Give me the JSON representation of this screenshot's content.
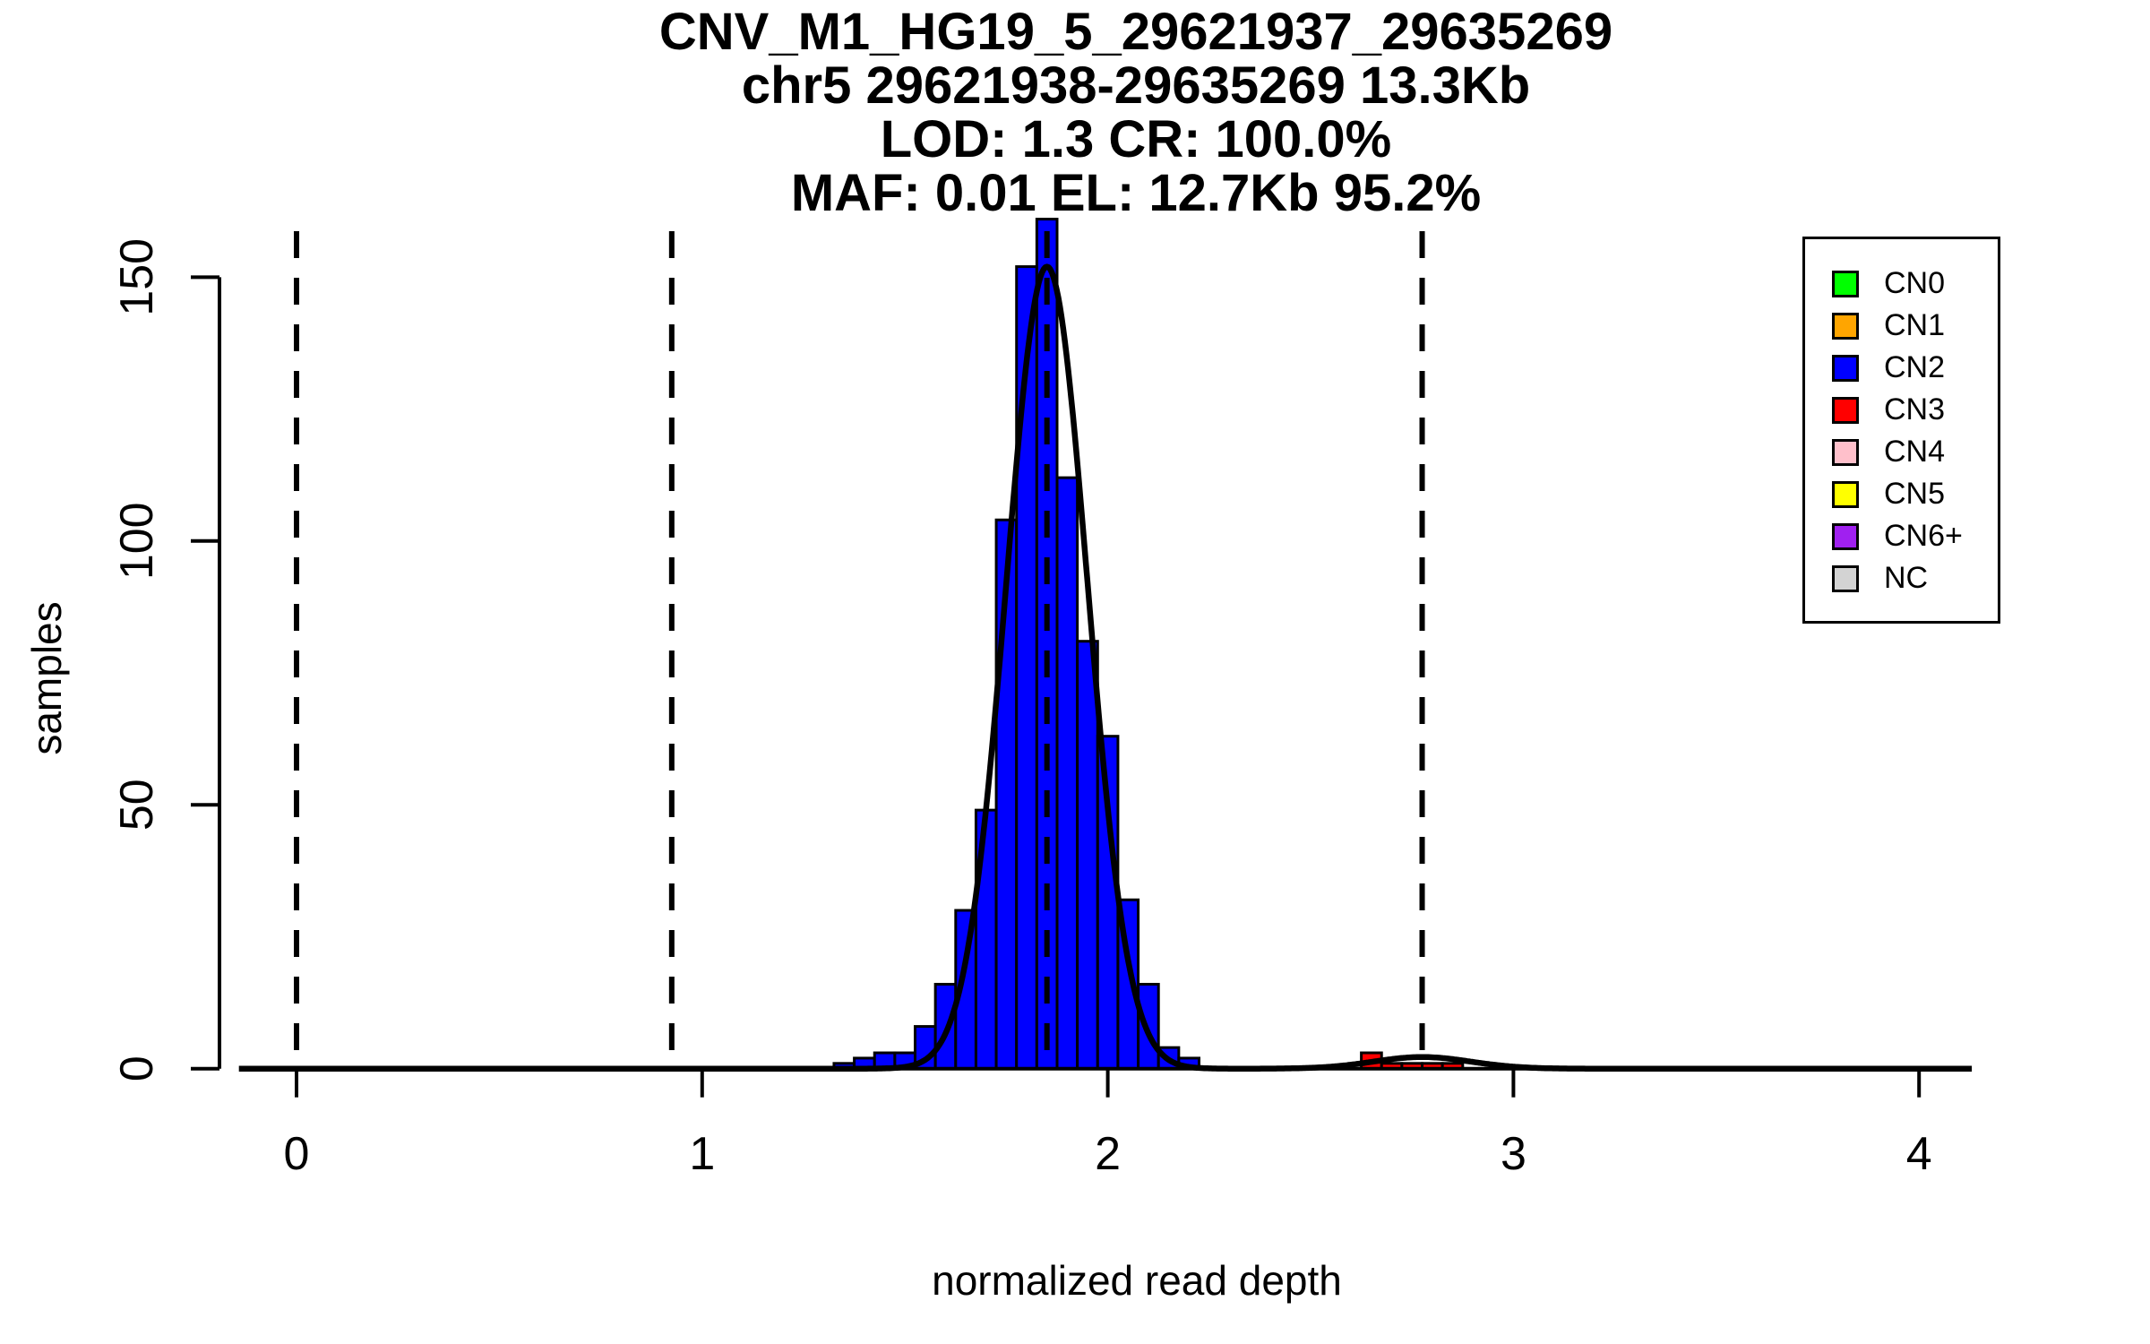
{
  "title": {
    "line1": "CNV_M1_HG19_5_29621937_29635269",
    "line2": "chr5 29621938-29635269 13.3Kb",
    "line3": "LOD: 1.3 CR: 100.0%",
    "line4": "MAF: 0.01 EL: 12.7Kb 95.2%"
  },
  "axes": {
    "x_label": "normalized read depth",
    "y_label": "samples",
    "x_ticks": [
      0,
      1,
      2,
      3,
      4
    ],
    "y_ticks": [
      0,
      50,
      100,
      150
    ]
  },
  "legend": {
    "items": [
      {
        "label": "CN0",
        "color": "#00FF00"
      },
      {
        "label": "CN1",
        "color": "#FFA500"
      },
      {
        "label": "CN2",
        "color": "#0000FF"
      },
      {
        "label": "CN3",
        "color": "#FF0000"
      },
      {
        "label": "CN4",
        "color": "#FFC0CB"
      },
      {
        "label": "CN5",
        "color": "#FFFF00"
      },
      {
        "label": "CN6+",
        "color": "#A020F0"
      },
      {
        "label": "NC",
        "color": "#D3D3D3"
      }
    ]
  },
  "chart_data": {
    "type": "bar",
    "subtype": "histogram",
    "title": "CNV_M1_HG19_5_29621937_29635269",
    "xlabel": "normalized read depth",
    "ylabel": "samples",
    "xlim": [
      -0.15,
      4.15
    ],
    "ylim": [
      0,
      165
    ],
    "grid": false,
    "legend_position": "top-right",
    "bin_width": 0.05,
    "series": [
      {
        "name": "CN2",
        "color": "#0000FF",
        "bin_starts": [
          1.325,
          1.375,
          1.425,
          1.475,
          1.525,
          1.575,
          1.625,
          1.675,
          1.725,
          1.775,
          1.825,
          1.875,
          1.925,
          1.975,
          2.025,
          2.075,
          2.125,
          2.175
        ],
        "counts": [
          1,
          2,
          3,
          3,
          8,
          16,
          30,
          49,
          104,
          152,
          161,
          112,
          81,
          63,
          32,
          16,
          4,
          2
        ]
      },
      {
        "name": "CN3",
        "color": "#FF0000",
        "bin_starts": [
          2.625,
          2.675,
          2.725,
          2.775,
          2.825
        ],
        "counts": [
          3,
          1,
          1,
          1,
          1
        ]
      }
    ],
    "density_curves": [
      {
        "name": "CN2-fit",
        "mean": 1.85,
        "sd": 0.1,
        "peak": 152
      },
      {
        "name": "CN3-fit",
        "mean": 2.775,
        "sd": 0.12,
        "peak": 2.2
      }
    ],
    "dashed_lines_x": [
      0,
      0.925,
      1.85,
      2.775
    ],
    "curve_color": "#000000",
    "dashed_line_color": "#000000"
  }
}
